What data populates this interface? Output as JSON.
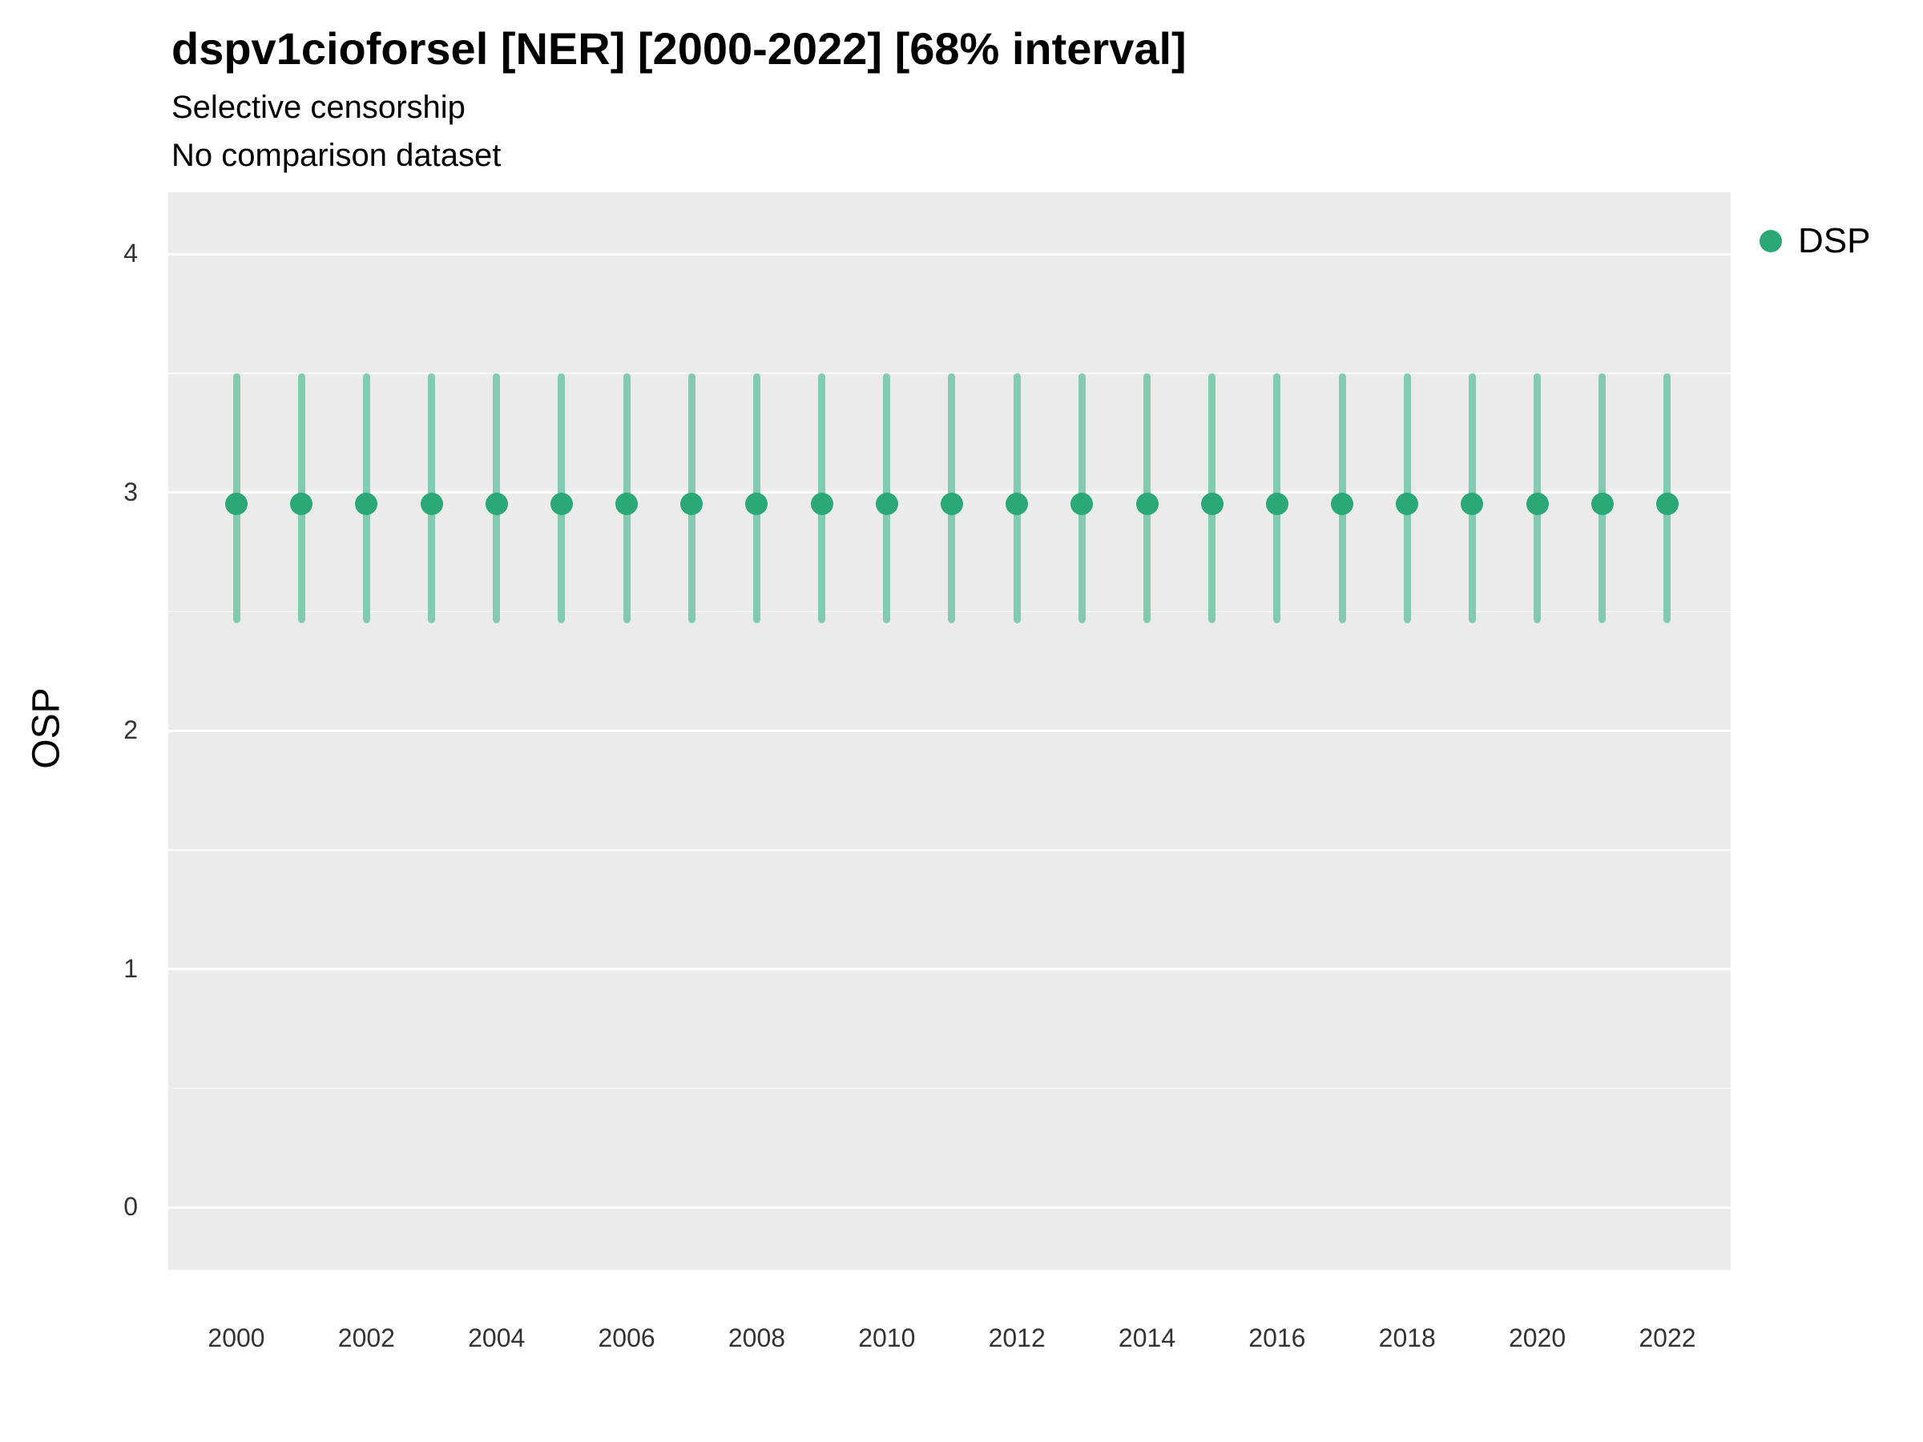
{
  "header": {
    "title": "dspv1cioforsel [NER] [2000-2022] [68% interval]",
    "subtitle1": "Selective censorship",
    "subtitle2": "No comparison dataset"
  },
  "legend": {
    "label": "DSP",
    "color": "#2aa876"
  },
  "chart_data": {
    "type": "scatter",
    "title": "dspv1cioforsel [NER] [2000-2022] [68% interval]",
    "subtitle": [
      "Selective censorship",
      "No comparison dataset"
    ],
    "xlabel": "",
    "ylabel": "OSP",
    "interval": "68%",
    "legend_position": "right-top",
    "grid": true,
    "panel_bg": "#ebebeb",
    "grid_color": "#ffffff",
    "x": [
      2000,
      2001,
      2002,
      2003,
      2004,
      2005,
      2006,
      2007,
      2008,
      2009,
      2010,
      2011,
      2012,
      2013,
      2014,
      2015,
      2016,
      2017,
      2018,
      2019,
      2020,
      2021,
      2022
    ],
    "series": [
      {
        "name": "DSP",
        "point_color": "#2aa876",
        "bar_color": "#82cbb0",
        "values": [
          2.95,
          2.95,
          2.95,
          2.95,
          2.95,
          2.95,
          2.95,
          2.95,
          2.95,
          2.95,
          2.95,
          2.95,
          2.95,
          2.95,
          2.95,
          2.95,
          2.95,
          2.95,
          2.95,
          2.95,
          2.95,
          2.95,
          2.95
        ],
        "interval_low": [
          2.45,
          2.45,
          2.45,
          2.45,
          2.45,
          2.45,
          2.45,
          2.45,
          2.45,
          2.45,
          2.45,
          2.45,
          2.45,
          2.45,
          2.45,
          2.45,
          2.45,
          2.45,
          2.45,
          2.45,
          2.45,
          2.45,
          2.45
        ],
        "interval_high": [
          3.5,
          3.5,
          3.5,
          3.5,
          3.5,
          3.5,
          3.5,
          3.5,
          3.5,
          3.5,
          3.5,
          3.5,
          3.5,
          3.5,
          3.5,
          3.5,
          3.5,
          3.5,
          3.5,
          3.5,
          3.5,
          3.5,
          3.5
        ]
      }
    ],
    "ylim": [
      -0.26,
      4.26
    ],
    "yticks": [
      0,
      1,
      2,
      3,
      4
    ],
    "yticks_minor": [
      0.5,
      1.5,
      2.5,
      3.5
    ],
    "xticks": [
      2000,
      2002,
      2004,
      2006,
      2008,
      2010,
      2012,
      2014,
      2016,
      2018,
      2020,
      2022
    ]
  }
}
